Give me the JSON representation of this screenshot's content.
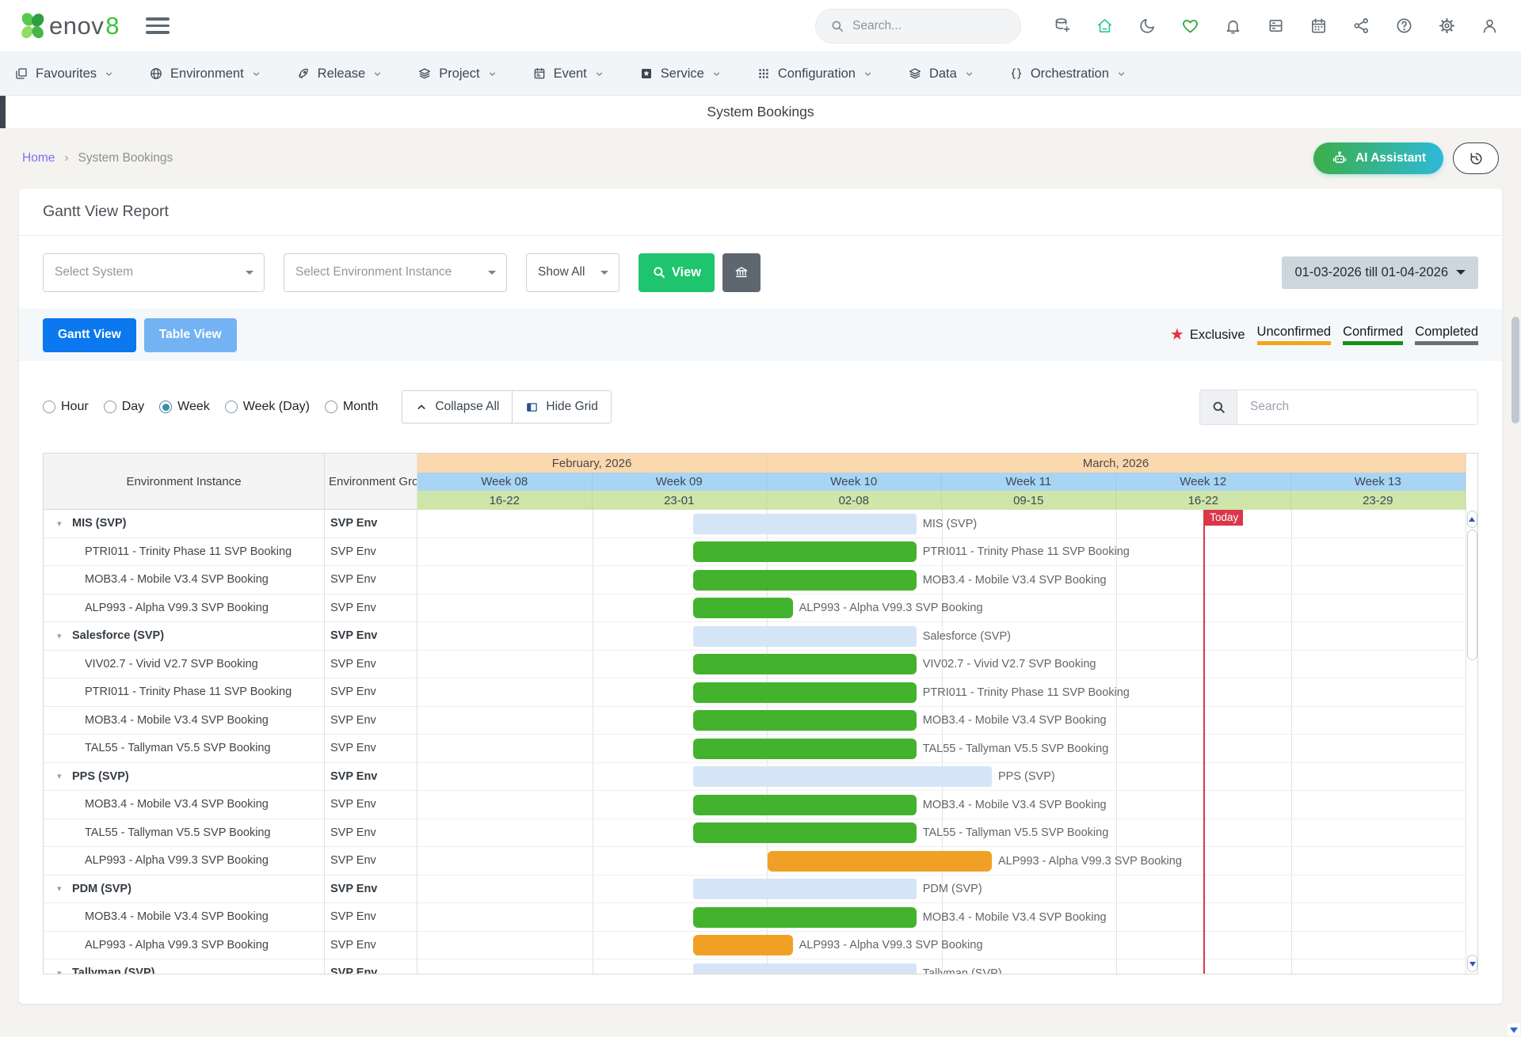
{
  "header": {
    "search_placeholder": "Search...",
    "icons": [
      {
        "name": "database-add"
      },
      {
        "name": "home",
        "color": "#29c79b"
      },
      {
        "name": "moon"
      },
      {
        "name": "heart",
        "color": "#1ba32f"
      },
      {
        "name": "bell"
      },
      {
        "name": "archive"
      },
      {
        "name": "calendar"
      },
      {
        "name": "share"
      },
      {
        "name": "help"
      },
      {
        "name": "gear"
      },
      {
        "name": "user"
      }
    ],
    "logo_text": "enov",
    "logo_digit": "8"
  },
  "nav": {
    "items": [
      {
        "label": "Favourites",
        "icon": "window"
      },
      {
        "label": "Environment",
        "icon": "globe"
      },
      {
        "label": "Release",
        "icon": "rocket"
      },
      {
        "label": "Project",
        "icon": "layers"
      },
      {
        "label": "Event",
        "icon": "calendar-lines"
      },
      {
        "label": "Service",
        "icon": "star-square"
      },
      {
        "label": "Configuration",
        "icon": "grid-dots"
      },
      {
        "label": "Data",
        "icon": "layers"
      },
      {
        "label": "Orchestration",
        "icon": "braces"
      }
    ]
  },
  "title_band": {
    "title": "System Bookings"
  },
  "breadcrumb": {
    "home": "Home",
    "separator": "›",
    "current": "System Bookings"
  },
  "actions": {
    "ai_assistant": "AI Assistant"
  },
  "report": {
    "title": "Gantt View Report"
  },
  "filters": {
    "system_placeholder": "Select System",
    "instance_placeholder": "Select Environment Instance",
    "show_all": "Show All",
    "view_label": "View",
    "date_range": "01-03-2026 till 01-04-2026"
  },
  "view_toggle": {
    "gantt": "Gantt View",
    "table": "Table View"
  },
  "legend": {
    "exclusive": "Exclusive",
    "unconfirmed": "Unconfirmed",
    "confirmed": "Confirmed",
    "completed": "Completed",
    "colors": {
      "unconfirmed": "#f5a41d",
      "confirmed": "#149014",
      "completed": "#6a6f75",
      "exclusive_star": "#e63046"
    }
  },
  "controls": {
    "radios": [
      {
        "label": "Hour",
        "selected": false
      },
      {
        "label": "Day",
        "selected": false
      },
      {
        "label": "Week",
        "selected": true
      },
      {
        "label": "Week (Day)",
        "selected": false
      },
      {
        "label": "Month",
        "selected": false
      }
    ],
    "collapse_all": "Collapse All",
    "hide_grid": "Hide Grid",
    "search_placeholder": "Search"
  },
  "gantt": {
    "columns": {
      "instance": "Environment Instance",
      "group": "Environment Group"
    },
    "months": [
      {
        "label": "February, 2026",
        "weeks": 2
      },
      {
        "label": "March, 2026",
        "weeks": 4
      }
    ],
    "weeks": [
      {
        "label": "Week 08",
        "dates": "16-22"
      },
      {
        "label": "Week 09",
        "dates": "23-01"
      },
      {
        "label": "Week 10",
        "dates": "02-08"
      },
      {
        "label": "Week 11",
        "dates": "09-15"
      },
      {
        "label": "Week 12",
        "dates": "16-22"
      },
      {
        "label": "Week 13",
        "dates": "23-29"
      }
    ],
    "today_label": "Today",
    "today_pos": 75.0,
    "bar_colors": {
      "parent": "#d5e5f7",
      "confirmed": "#43b22c",
      "unconfirmed": "#f0a125"
    },
    "rows": [
      {
        "name": "MIS (SVP)",
        "group": "SVP Env",
        "parent": true,
        "status": "parent",
        "start": 26.3,
        "end": 47.6
      },
      {
        "name": "PTRI011 - Trinity Phase 11 SVP Booking",
        "group": "SVP Env",
        "parent": false,
        "status": "confirmed",
        "start": 26.3,
        "end": 47.6
      },
      {
        "name": "MOB3.4 - Mobile V3.4 SVP Booking",
        "group": "SVP Env",
        "parent": false,
        "status": "confirmed",
        "start": 26.3,
        "end": 47.6
      },
      {
        "name": "ALP993 - Alpha V99.3 SVP Booking",
        "group": "SVP Env",
        "parent": false,
        "status": "confirmed",
        "start": 26.3,
        "end": 35.8
      },
      {
        "name": "Salesforce (SVP)",
        "group": "SVP Env",
        "parent": true,
        "status": "parent",
        "start": 26.3,
        "end": 47.6
      },
      {
        "name": "VIV02.7 - Vivid V2.7 SVP Booking",
        "group": "SVP Env",
        "parent": false,
        "status": "confirmed",
        "start": 26.3,
        "end": 47.6
      },
      {
        "name": "PTRI011 - Trinity Phase 11 SVP Booking",
        "group": "SVP Env",
        "parent": false,
        "status": "confirmed",
        "start": 26.3,
        "end": 47.6
      },
      {
        "name": "MOB3.4 - Mobile V3.4 SVP Booking",
        "group": "SVP Env",
        "parent": false,
        "status": "confirmed",
        "start": 26.3,
        "end": 47.6
      },
      {
        "name": "TAL55 - Tallyman V5.5 SVP Booking",
        "group": "SVP Env",
        "parent": false,
        "status": "confirmed",
        "start": 26.3,
        "end": 47.6
      },
      {
        "name": "PPS (SVP)",
        "group": "SVP Env",
        "parent": true,
        "status": "parent",
        "start": 26.3,
        "end": 54.8
      },
      {
        "name": "MOB3.4 - Mobile V3.4 SVP Booking",
        "group": "SVP Env",
        "parent": false,
        "status": "confirmed",
        "start": 26.3,
        "end": 47.6
      },
      {
        "name": "TAL55 - Tallyman V5.5 SVP Booking",
        "group": "SVP Env",
        "parent": false,
        "status": "confirmed",
        "start": 26.3,
        "end": 47.6
      },
      {
        "name": "ALP993 - Alpha V99.3 SVP Booking",
        "group": "SVP Env",
        "parent": false,
        "status": "unconfirmed",
        "start": 33.4,
        "end": 54.8
      },
      {
        "name": "PDM (SVP)",
        "group": "SVP Env",
        "parent": true,
        "status": "parent",
        "start": 26.3,
        "end": 47.6
      },
      {
        "name": "MOB3.4 - Mobile V3.4 SVP Booking",
        "group": "SVP Env",
        "parent": false,
        "status": "confirmed",
        "start": 26.3,
        "end": 47.6
      },
      {
        "name": "ALP993 - Alpha V99.3 SVP Booking",
        "group": "SVP Env",
        "parent": false,
        "status": "unconfirmed",
        "start": 26.3,
        "end": 35.8
      },
      {
        "name": "Tallyman (SVP)",
        "group": "SVP Env",
        "parent": true,
        "status": "parent",
        "start": 26.3,
        "end": 47.6
      }
    ]
  }
}
